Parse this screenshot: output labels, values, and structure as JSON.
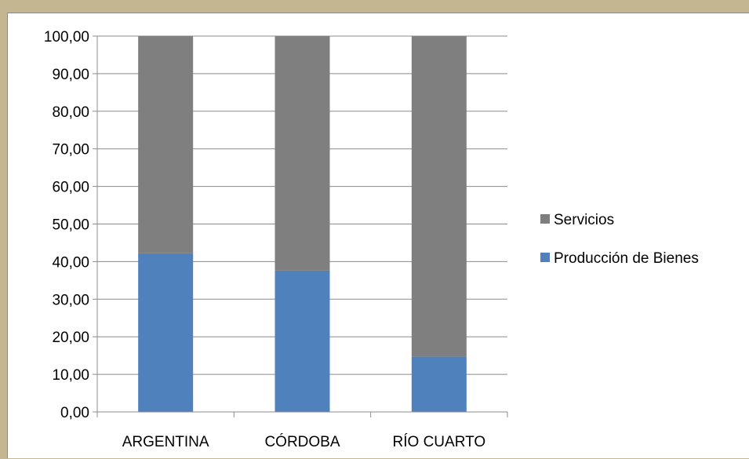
{
  "chart_data": {
    "type": "bar",
    "stacked": true,
    "categories": [
      "ARGENTINA",
      "CÓRDOBA",
      "RÍO CUARTO"
    ],
    "series": [
      {
        "name": "Producción de Bienes",
        "values": [
          42.2,
          37.6,
          14.7
        ],
        "color": "#4f81bd"
      },
      {
        "name": "Servicios",
        "values": [
          57.8,
          62.4,
          85.3
        ],
        "color": "#7f7f7f"
      }
    ],
    "yticks": [
      "0,00",
      "10,00",
      "20,00",
      "30,00",
      "40,00",
      "50,00",
      "60,00",
      "70,00",
      "80,00",
      "90,00",
      "100,00"
    ],
    "ylim": [
      0,
      100
    ],
    "grid": true,
    "legend_position": "right",
    "legend_order": [
      "Servicios",
      "Producción de Bienes"
    ],
    "title": "",
    "xlabel": "",
    "ylabel": ""
  }
}
